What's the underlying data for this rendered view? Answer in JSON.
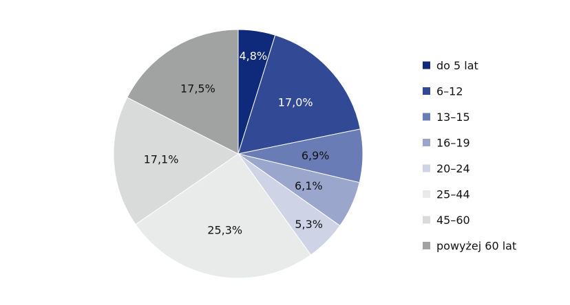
{
  "chart_data": {
    "type": "pie",
    "title": "",
    "start_angle_deg": 0,
    "direction": "clockwise",
    "legend_position": "right",
    "slices": [
      {
        "label": "do 5 lat",
        "value": 4.8,
        "value_label": "4,8%",
        "color": "#0f2a7a",
        "label_color": "#ffffff"
      },
      {
        "label": "6–12",
        "value": 17.0,
        "value_label": "17,0%",
        "color": "#324a96",
        "label_color": "#ffffff"
      },
      {
        "label": "13–15",
        "value": 6.9,
        "value_label": "6,9%",
        "color": "#6a7cb5",
        "label_color": "#111111"
      },
      {
        "label": "16–19",
        "value": 6.1,
        "value_label": "6,1%",
        "color": "#9aa6cc",
        "label_color": "#111111"
      },
      {
        "label": "20–24",
        "value": 5.3,
        "value_label": "5,3%",
        "color": "#ced3e6",
        "label_color": "#111111"
      },
      {
        "label": "25–44",
        "value": 25.3,
        "value_label": "25,3%",
        "color": "#e9ebeb",
        "label_color": "#111111"
      },
      {
        "label": "45–60",
        "value": 17.1,
        "value_label": "17,1%",
        "color": "#d9dbda",
        "label_color": "#111111"
      },
      {
        "label": "powyżej 60 lat",
        "value": 17.5,
        "value_label": "17,5%",
        "color": "#a0a3a2",
        "label_color": "#111111"
      }
    ]
  }
}
